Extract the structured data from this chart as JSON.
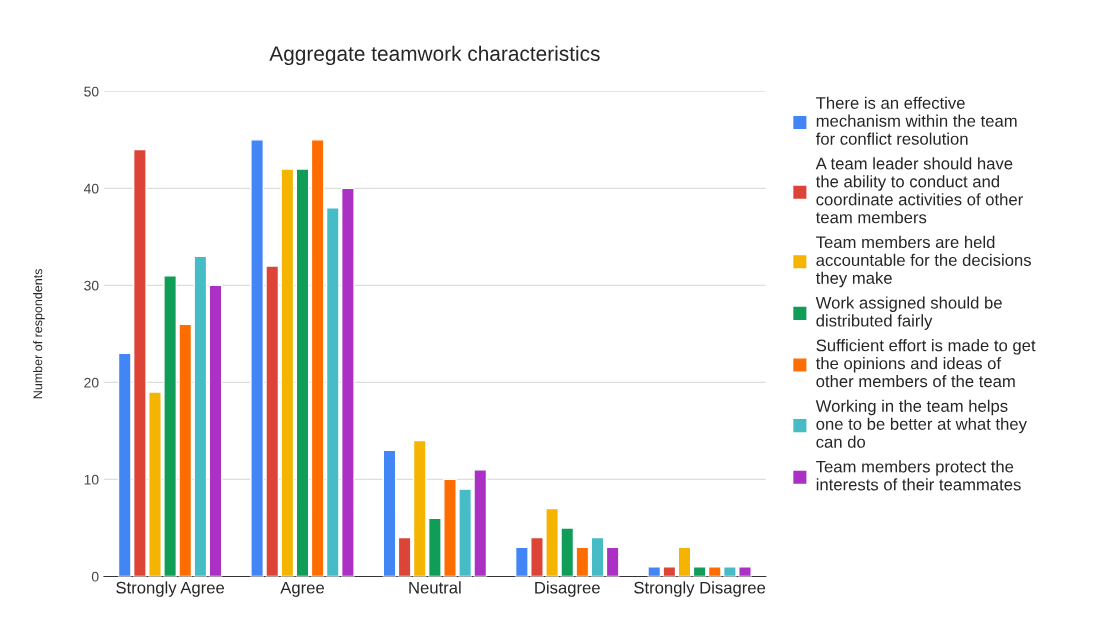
{
  "chart_data": {
    "type": "bar",
    "title": "Aggregate teamwork characteristics",
    "ylabel": "Number of respondents",
    "categories": [
      "Strongly Agree",
      "Agree",
      "Neutral",
      "Disagree",
      "Strongly Disagree"
    ],
    "series": [
      {
        "name": "There is an effective\nmechanism within the team\nfor conflict resolution",
        "color": "#4285f4",
        "values": [
          23,
          45,
          13,
          3,
          1
        ]
      },
      {
        "name": "A team leader should have\nthe ability to conduct and\ncoordinate activities of other\nteam members",
        "color": "#db4437",
        "values": [
          44,
          32,
          4,
          4,
          1
        ]
      },
      {
        "name": "Team members are held\naccountable for the decisions\nthey make",
        "color": "#f4b400",
        "values": [
          19,
          42,
          14,
          7,
          3
        ]
      },
      {
        "name": "Work assigned should be\ndistributed fairly",
        "color": "#0f9d58",
        "values": [
          31,
          42,
          6,
          5,
          1
        ]
      },
      {
        "name": "Sufficient effort is made to get\nthe opinions and ideas of\nother members of the team",
        "color": "#ff6d01",
        "values": [
          26,
          45,
          10,
          3,
          1
        ]
      },
      {
        "name": "Working in the team helps\none to be better at what they\ncan do",
        "color": "#46bdc6",
        "values": [
          33,
          38,
          9,
          4,
          1
        ]
      },
      {
        "name": "Team members protect the\ninterests of their teammates",
        "color": "#ab30c4",
        "values": [
          30,
          40,
          11,
          3,
          1
        ]
      }
    ],
    "ylim": [
      0,
      50
    ],
    "yticks": [
      0,
      10,
      20,
      30,
      40,
      50
    ],
    "grid": "y",
    "legend": "right"
  }
}
